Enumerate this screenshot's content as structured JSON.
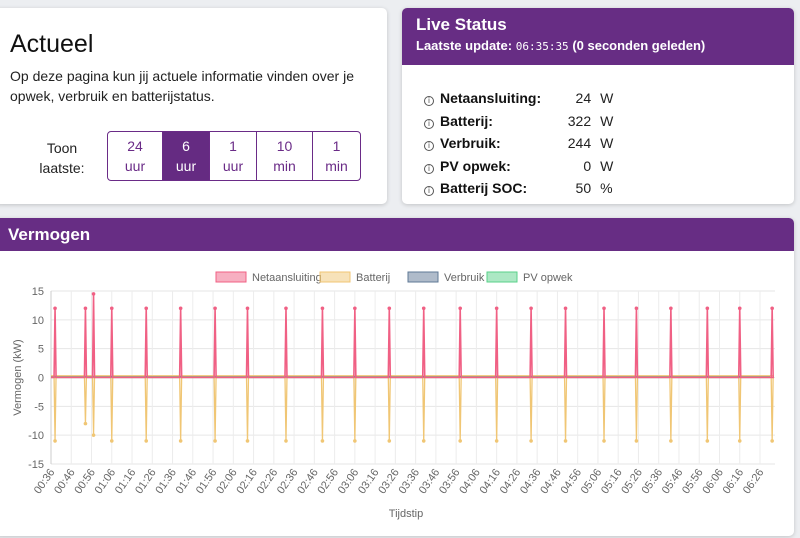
{
  "actueel": {
    "title": "Actueel",
    "description": "Op deze pagina kun jij actuele informatie vinden over je opwek, verbruik en batterijstatus.",
    "toon_label_1": "Toon",
    "toon_label_2": "laatste:",
    "options": [
      {
        "value": "24",
        "unit": "uur",
        "active": false
      },
      {
        "value": "6",
        "unit": "uur",
        "active": true
      },
      {
        "value": "1",
        "unit": "uur",
        "active": false
      },
      {
        "value": "10",
        "unit": "min",
        "active": false
      },
      {
        "value": "1",
        "unit": "min",
        "active": false
      }
    ]
  },
  "live": {
    "title": "Live Status",
    "update_label": "Laatste update:",
    "update_time": "06:35:35",
    "update_ago": "(0 seconden geleden)",
    "rows": [
      {
        "label": "Netaansluiting:",
        "value": "24",
        "unit": "W"
      },
      {
        "label": "Batterij:",
        "value": "322",
        "unit": "W"
      },
      {
        "label": "Verbruik:",
        "value": "244",
        "unit": "W"
      },
      {
        "label": "PV opwek:",
        "value": "0",
        "unit": "W"
      },
      {
        "label": "Batterij SOC:",
        "value": "50",
        "unit": "%"
      }
    ]
  },
  "vermogen": {
    "title": "Vermogen"
  },
  "colors": {
    "accent": "#672d84",
    "netaansluiting": "#f06084",
    "batterij": "#f0c674",
    "verbruik": "#5f7896",
    "pv_opwek": "#5ad18a"
  },
  "chart_data": {
    "type": "line",
    "xlabel": "Tijdstip",
    "ylabel": "Vermogen (kW)",
    "ylim": [
      -15,
      15
    ],
    "yticks": [
      15,
      10,
      5,
      0,
      -5,
      -10,
      -15
    ],
    "legend_position": "top",
    "grid": true,
    "x": [
      "00:36",
      "00:46",
      "00:56",
      "01:06",
      "01:16",
      "01:26",
      "01:36",
      "01:46",
      "01:56",
      "02:06",
      "02:16",
      "02:26",
      "02:36",
      "02:46",
      "02:56",
      "03:06",
      "03:16",
      "03:26",
      "03:36",
      "03:46",
      "03:56",
      "04:06",
      "04:16",
      "04:26",
      "04:36",
      "04:46",
      "04:56",
      "05:06",
      "05:16",
      "05:26",
      "05:36",
      "05:46",
      "05:56",
      "06:06",
      "06:16",
      "06:26"
    ],
    "series": [
      {
        "name": "Netaansluiting",
        "baseline": 0,
        "spikes": [
          {
            "x": "00:38",
            "value": 12
          },
          {
            "x": "00:53",
            "value": 12
          },
          {
            "x": "00:57",
            "value": 14.5
          },
          {
            "x": "01:06",
            "value": 12
          },
          {
            "x": "01:23",
            "value": 12
          },
          {
            "x": "01:40",
            "value": 12
          },
          {
            "x": "01:57",
            "value": 12
          },
          {
            "x": "02:13",
            "value": 12
          },
          {
            "x": "02:32",
            "value": 12
          },
          {
            "x": "02:50",
            "value": 12
          },
          {
            "x": "03:06",
            "value": 12
          },
          {
            "x": "03:23",
            "value": 12
          },
          {
            "x": "03:40",
            "value": 12
          },
          {
            "x": "03:58",
            "value": 12
          },
          {
            "x": "04:16",
            "value": 12
          },
          {
            "x": "04:33",
            "value": 12
          },
          {
            "x": "04:50",
            "value": 12
          },
          {
            "x": "05:09",
            "value": 12
          },
          {
            "x": "05:25",
            "value": 12
          },
          {
            "x": "05:42",
            "value": 12
          },
          {
            "x": "06:00",
            "value": 12
          },
          {
            "x": "06:16",
            "value": 12
          },
          {
            "x": "06:32",
            "value": 12
          }
        ]
      },
      {
        "name": "Batterij",
        "baseline": 0.3,
        "spikes": [
          {
            "x": "00:38",
            "value": -11
          },
          {
            "x": "00:53",
            "value": -8
          },
          {
            "x": "00:57",
            "value": -10
          },
          {
            "x": "01:06",
            "value": -11
          },
          {
            "x": "01:23",
            "value": -11
          },
          {
            "x": "01:40",
            "value": -11
          },
          {
            "x": "01:57",
            "value": -11
          },
          {
            "x": "02:13",
            "value": -11
          },
          {
            "x": "02:32",
            "value": -11
          },
          {
            "x": "02:50",
            "value": -11
          },
          {
            "x": "03:06",
            "value": -11
          },
          {
            "x": "03:23",
            "value": -11
          },
          {
            "x": "03:40",
            "value": -11
          },
          {
            "x": "03:58",
            "value": -11
          },
          {
            "x": "04:16",
            "value": -11
          },
          {
            "x": "04:33",
            "value": -11
          },
          {
            "x": "04:50",
            "value": -11
          },
          {
            "x": "05:09",
            "value": -11
          },
          {
            "x": "05:25",
            "value": -11
          },
          {
            "x": "05:42",
            "value": -11
          },
          {
            "x": "06:00",
            "value": -11
          },
          {
            "x": "06:16",
            "value": -11
          },
          {
            "x": "06:32",
            "value": -11
          }
        ]
      },
      {
        "name": "Verbruik",
        "baseline": 0.2,
        "spikes": []
      },
      {
        "name": "PV opwek",
        "baseline": 0,
        "spikes": []
      }
    ]
  }
}
